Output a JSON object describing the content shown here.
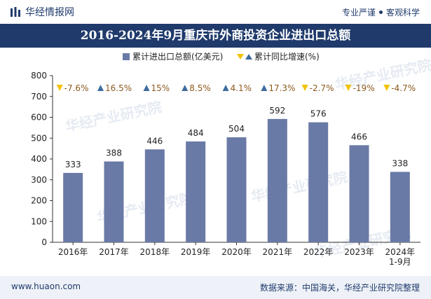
{
  "header": {
    "brand": "华经情报网",
    "slogan_left": "专业严谨",
    "slogan_right": "客观科学"
  },
  "title": "2016-2024年9月重庆市外商投资企业进出口总额",
  "watermark": "华经产业研究院",
  "footer": {
    "site": "www.huaon.com",
    "source": "数据来源：中国海关，华经产业研究院整理"
  },
  "colors": {
    "bar": "#6a7aa6",
    "up_marker": "#3d6b9e",
    "down_marker": "#f2c200",
    "growth_text": "#8b5a1e",
    "header_bg": "#1f3a6b"
  },
  "chart_data": {
    "type": "bar",
    "categories": [
      "2016年",
      "2017年",
      "2018年",
      "2019年",
      "2020年",
      "2021年",
      "2022年",
      "2023年",
      "2024年\n1-9月"
    ],
    "series": [
      {
        "name": "累计进出口总额(亿美元)",
        "values": [
          333,
          388,
          446,
          484,
          504,
          592,
          576,
          466,
          338
        ]
      },
      {
        "name": "累计同比增速(%)",
        "labels": [
          "-7.6%",
          "16.5%",
          "15%",
          "8.5%",
          "4.1%",
          "17.3%",
          "-2.7%",
          "-19%",
          "-4.7%"
        ],
        "directions": [
          "down",
          "up",
          "up",
          "up",
          "up",
          "up",
          "down",
          "down",
          "down"
        ]
      }
    ],
    "y_ticks": [
      0,
      100,
      200,
      300,
      400,
      500,
      600,
      700,
      800
    ],
    "ylim": [
      0,
      800
    ],
    "legend_position": "top-center",
    "grid": false
  }
}
